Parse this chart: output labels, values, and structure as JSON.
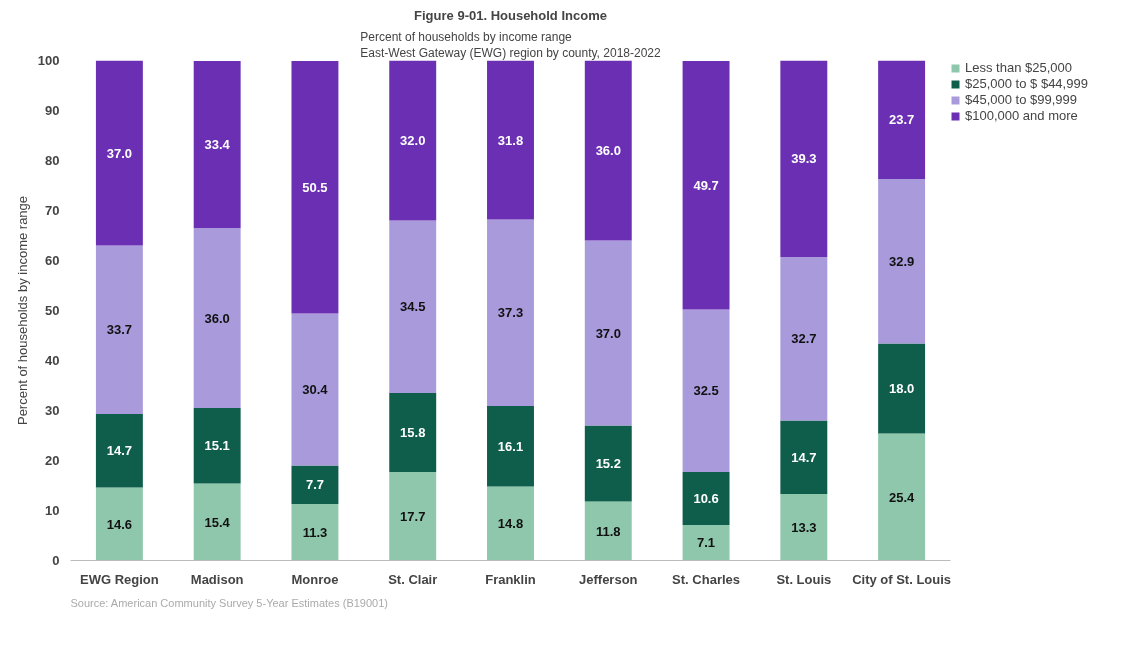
{
  "chart_data": {
    "type": "bar",
    "stacked": true,
    "title": "Figure 9-01. Household Income",
    "subtitle": "Percent of households by income range\nEast-West Gateway (EWG) region by county, 2018-2022",
    "ylabel": "Percent of households by income range",
    "categories": [
      "EWG Region",
      "Madison",
      "Monroe",
      "St. Clair",
      "Franklin",
      "Jefferson",
      "St. Charles",
      "St. Louis",
      "City of St. Louis"
    ],
    "series": [
      {
        "name": "Less than $25,000",
        "color": "#8fc7ad",
        "values": [
          14.6,
          15.4,
          11.3,
          17.7,
          14.8,
          11.8,
          7.1,
          13.3,
          25.4
        ],
        "value_labels": [
          "14.6",
          "15.4",
          "11.3",
          "17.7",
          "14.8",
          "11.8",
          "7.1",
          "13.3",
          "25.4"
        ]
      },
      {
        "name": "$25,000 to $ $44,999",
        "color": "#0f5e4b",
        "values": [
          14.7,
          15.1,
          7.7,
          15.8,
          16.1,
          15.2,
          10.6,
          14.7,
          18.0
        ],
        "value_labels": [
          "14.7",
          "15.1",
          "7.7",
          "15.8",
          "16.1",
          "15.2",
          "10.6",
          "14.7",
          "18.0"
        ]
      },
      {
        "name": "$45,000 to $99,999",
        "color": "#a99bdb",
        "values": [
          33.7,
          36.0,
          30.4,
          34.5,
          37.3,
          37.0,
          32.5,
          32.7,
          32.9
        ],
        "value_labels": [
          "33.7",
          "36.0",
          "30.4",
          "34.5",
          "37.3",
          "37.0",
          "32.5",
          "32.7",
          "32.9"
        ]
      },
      {
        "name": "$100,000 and more",
        "color": "#6b2fb3",
        "values": [
          37.0,
          33.4,
          50.5,
          32.0,
          31.8,
          36.0,
          49.7,
          39.3,
          23.7
        ],
        "value_labels": [
          "37.0",
          "33.4",
          "50.5",
          "32.0",
          "31.8",
          "36.0",
          "49.7",
          "39.3",
          "23.7"
        ]
      }
    ],
    "ylim": [
      0,
      100
    ],
    "yticks": [
      0,
      10,
      20,
      30,
      40,
      50,
      60,
      70,
      80,
      90,
      100
    ],
    "grid": false,
    "legend": "top right",
    "annotations": [
      "Source: American Community Survey 5-Year Estimates (B19001)"
    ]
  }
}
